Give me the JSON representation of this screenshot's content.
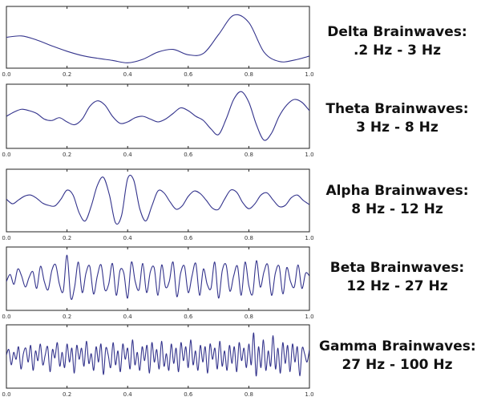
{
  "line_color": "#33338c",
  "axis_color": "#222222",
  "x_ticks": [
    "0.0",
    "0.2",
    "0.4",
    "0.6",
    "0.8",
    "1.0"
  ],
  "chart_data": [
    {
      "type": "line",
      "title_line1": "Delta Brainwaves:",
      "title_line2": ".2 Hz - 3 Hz",
      "xlim": [
        0,
        1
      ],
      "ylim": [
        -1,
        1
      ],
      "x": [
        0,
        0.05,
        0.1,
        0.15,
        0.2,
        0.25,
        0.3,
        0.35,
        0.4,
        0.45,
        0.5,
        0.55,
        0.6,
        0.65,
        0.7,
        0.75,
        0.8,
        0.85,
        0.9,
        0.95,
        1.0
      ],
      "y": [
        0.0,
        0.05,
        -0.1,
        -0.32,
        -0.52,
        -0.68,
        -0.78,
        -0.86,
        -0.95,
        -0.82,
        -0.55,
        -0.45,
        -0.65,
        -0.6,
        0.1,
        0.82,
        0.55,
        -0.55,
        -0.9,
        -0.85,
        -0.7
      ]
    },
    {
      "type": "line",
      "title_line1": "Theta Brainwaves:",
      "title_line2": "3 Hz - 8 Hz",
      "xlim": [
        0,
        1
      ],
      "ylim": [
        -1,
        1
      ],
      "x": [
        0,
        0.025,
        0.05,
        0.075,
        0.1,
        0.125,
        0.15,
        0.175,
        0.2,
        0.225,
        0.25,
        0.275,
        0.3,
        0.325,
        0.35,
        0.375,
        0.4,
        0.425,
        0.45,
        0.475,
        0.5,
        0.525,
        0.55,
        0.575,
        0.6,
        0.625,
        0.65,
        0.675,
        0.7,
        0.725,
        0.75,
        0.775,
        0.8,
        0.825,
        0.85,
        0.875,
        0.9,
        0.925,
        0.95,
        0.975,
        1.0
      ],
      "y": [
        0.0,
        0.15,
        0.25,
        0.2,
        0.1,
        -0.1,
        -0.15,
        -0.05,
        -0.2,
        -0.3,
        -0.1,
        0.35,
        0.55,
        0.4,
        0.0,
        -0.25,
        -0.2,
        -0.05,
        0.0,
        -0.1,
        -0.2,
        -0.1,
        0.1,
        0.3,
        0.2,
        0.0,
        -0.15,
        -0.45,
        -0.65,
        -0.1,
        0.6,
        0.88,
        0.5,
        -0.3,
        -0.85,
        -0.6,
        0.0,
        0.4,
        0.6,
        0.5,
        0.2
      ]
    },
    {
      "type": "line",
      "title_line1": "Alpha Brainwaves:",
      "title_line2": "8 Hz - 12 Hz",
      "xlim": [
        0,
        1
      ],
      "ylim": [
        -1,
        1
      ],
      "x": [
        0,
        0.02,
        0.04,
        0.06,
        0.08,
        0.1,
        0.12,
        0.14,
        0.16,
        0.18,
        0.2,
        0.22,
        0.24,
        0.26,
        0.28,
        0.3,
        0.32,
        0.34,
        0.36,
        0.38,
        0.4,
        0.42,
        0.44,
        0.46,
        0.48,
        0.5,
        0.52,
        0.54,
        0.56,
        0.58,
        0.6,
        0.62,
        0.64,
        0.66,
        0.68,
        0.7,
        0.72,
        0.74,
        0.76,
        0.78,
        0.8,
        0.82,
        0.84,
        0.86,
        0.88,
        0.9,
        0.92,
        0.94,
        0.96,
        0.98,
        1.0
      ],
      "y": [
        0.05,
        -0.12,
        0.02,
        0.16,
        0.2,
        0.08,
        -0.1,
        -0.18,
        -0.2,
        0.05,
        0.38,
        0.2,
        -0.45,
        -0.75,
        -0.2,
        0.55,
        0.85,
        0.2,
        -0.82,
        -0.55,
        0.8,
        0.75,
        -0.3,
        -0.75,
        -0.2,
        0.35,
        0.28,
        -0.05,
        -0.32,
        -0.2,
        0.15,
        0.35,
        0.25,
        0.0,
        -0.28,
        -0.32,
        0.05,
        0.38,
        0.3,
        -0.08,
        -0.3,
        -0.12,
        0.2,
        0.28,
        0.02,
        -0.22,
        -0.18,
        0.1,
        0.2,
        0.0,
        -0.15
      ]
    },
    {
      "type": "line",
      "title_line1": "Beta Brainwaves:",
      "title_line2": "12 Hz - 27 Hz",
      "xlim": [
        0,
        1
      ],
      "ylim": [
        -1,
        1
      ],
      "x": [
        0,
        0.0125,
        0.025,
        0.0375,
        0.05,
        0.0625,
        0.075,
        0.0875,
        0.1,
        0.1125,
        0.125,
        0.1375,
        0.15,
        0.1625,
        0.175,
        0.1875,
        0.2,
        0.2125,
        0.225,
        0.2375,
        0.25,
        0.2625,
        0.275,
        0.2875,
        0.3,
        0.3125,
        0.325,
        0.3375,
        0.35,
        0.3625,
        0.375,
        0.3875,
        0.4,
        0.4125,
        0.425,
        0.4375,
        0.45,
        0.4625,
        0.475,
        0.4875,
        0.5,
        0.5125,
        0.525,
        0.5375,
        0.55,
        0.5625,
        0.575,
        0.5875,
        0.6,
        0.6125,
        0.625,
        0.6375,
        0.65,
        0.6625,
        0.675,
        0.6875,
        0.7,
        0.7125,
        0.725,
        0.7375,
        0.75,
        0.7625,
        0.775,
        0.7875,
        0.8,
        0.8125,
        0.825,
        0.8375,
        0.85,
        0.8625,
        0.875,
        0.8875,
        0.9,
        0.9125,
        0.925,
        0.9375,
        0.95,
        0.9625,
        0.975,
        0.9875,
        1.0
      ],
      "y": [
        -0.1,
        0.15,
        -0.2,
        0.35,
        0.1,
        -0.3,
        0.05,
        0.25,
        -0.35,
        0.45,
        -0.1,
        -0.4,
        0.3,
        0.5,
        -0.2,
        -0.45,
        0.85,
        -0.7,
        -0.3,
        0.6,
        -0.5,
        0.2,
        0.45,
        -0.55,
        0.1,
        0.5,
        -0.4,
        -0.2,
        0.55,
        -0.6,
        0.3,
        0.2,
        -0.7,
        0.6,
        -0.1,
        -0.4,
        0.55,
        -0.5,
        0.25,
        0.4,
        -0.6,
        0.5,
        -0.3,
        -0.1,
        0.6,
        -0.65,
        0.2,
        0.45,
        -0.5,
        0.1,
        0.55,
        -0.6,
        0.35,
        -0.2,
        -0.35,
        0.6,
        -0.7,
        0.3,
        0.5,
        -0.45,
        0.1,
        0.45,
        -0.6,
        0.6,
        -0.25,
        -0.55,
        0.65,
        -0.3,
        0.25,
        0.5,
        -0.6,
        0.2,
        0.45,
        -0.55,
        0.4,
        -0.1,
        -0.3,
        0.5,
        -0.35,
        0.2,
        0.1
      ]
    },
    {
      "type": "line",
      "title_line1": "Gamma Brainwaves:",
      "title_line2": "27 Hz - 100 Hz",
      "xlim": [
        0,
        1
      ],
      "ylim": [
        -1,
        1
      ],
      "x": [
        0,
        0.008,
        0.016,
        0.024,
        0.032,
        0.04,
        0.048,
        0.056,
        0.064,
        0.072,
        0.08,
        0.088,
        0.096,
        0.104,
        0.112,
        0.12,
        0.128,
        0.136,
        0.144,
        0.152,
        0.16,
        0.168,
        0.176,
        0.184,
        0.192,
        0.2,
        0.208,
        0.216,
        0.224,
        0.232,
        0.24,
        0.248,
        0.256,
        0.264,
        0.272,
        0.28,
        0.288,
        0.296,
        0.304,
        0.312,
        0.32,
        0.328,
        0.336,
        0.344,
        0.352,
        0.36,
        0.368,
        0.376,
        0.384,
        0.392,
        0.4,
        0.408,
        0.416,
        0.424,
        0.432,
        0.44,
        0.448,
        0.456,
        0.464,
        0.472,
        0.48,
        0.488,
        0.496,
        0.504,
        0.512,
        0.52,
        0.528,
        0.536,
        0.544,
        0.552,
        0.56,
        0.568,
        0.576,
        0.584,
        0.592,
        0.6,
        0.608,
        0.616,
        0.624,
        0.632,
        0.64,
        0.648,
        0.656,
        0.664,
        0.672,
        0.68,
        0.688,
        0.696,
        0.704,
        0.712,
        0.72,
        0.728,
        0.736,
        0.744,
        0.752,
        0.76,
        0.768,
        0.776,
        0.784,
        0.792,
        0.8,
        0.808,
        0.816,
        0.824,
        0.832,
        0.84,
        0.848,
        0.856,
        0.864,
        0.872,
        0.88,
        0.888,
        0.896,
        0.904,
        0.912,
        0.92,
        0.928,
        0.936,
        0.944,
        0.952,
        0.96,
        0.968,
        0.976,
        0.984,
        0.992,
        1.0
      ],
      "y": [
        0.05,
        0.25,
        -0.3,
        0.15,
        -0.1,
        0.35,
        -0.45,
        0.1,
        0.3,
        -0.2,
        0.4,
        -0.5,
        0.2,
        -0.15,
        0.45,
        -0.3,
        0.05,
        0.35,
        -0.55,
        0.25,
        -0.05,
        0.5,
        -0.35,
        0.15,
        -0.4,
        0.45,
        -0.2,
        0.3,
        -0.6,
        0.4,
        -0.1,
        0.3,
        -0.35,
        0.55,
        -0.25,
        0.1,
        -0.5,
        0.35,
        -0.2,
        0.45,
        -0.65,
        0.3,
        0.05,
        -0.4,
        0.5,
        -0.3,
        0.2,
        -0.55,
        0.45,
        -0.1,
        0.3,
        -0.45,
        0.6,
        -0.3,
        0.15,
        -0.5,
        0.35,
        -0.15,
        0.4,
        -0.6,
        0.5,
        -0.2,
        0.25,
        -0.45,
        0.55,
        -0.35,
        0.1,
        -0.5,
        0.45,
        -0.25,
        0.3,
        -0.55,
        0.5,
        -0.15,
        0.35,
        -0.4,
        0.6,
        -0.3,
        0.2,
        -0.5,
        0.4,
        -0.2,
        0.35,
        -0.6,
        0.45,
        -0.1,
        0.3,
        -0.45,
        0.55,
        -0.35,
        0.2,
        -0.5,
        0.4,
        -0.25,
        0.35,
        -0.55,
        0.5,
        -0.15,
        0.3,
        -0.4,
        0.45,
        -0.3,
        0.85,
        -0.7,
        0.35,
        -0.4,
        0.6,
        -0.5,
        0.2,
        -0.35,
        0.75,
        -0.45,
        0.3,
        -0.6,
        0.5,
        -0.25,
        0.4,
        -0.55,
        0.45,
        -0.2,
        0.35,
        -0.7,
        0.3,
        0.1,
        -0.2,
        0.25
      ]
    }
  ]
}
